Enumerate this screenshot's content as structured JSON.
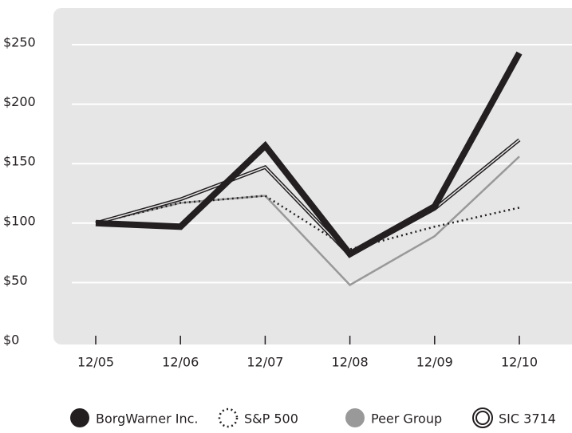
{
  "chart_data": {
    "type": "line",
    "categories": [
      "12/05",
      "12/06",
      "12/07",
      "12/08",
      "12/09",
      "12/10"
    ],
    "series": [
      {
        "name": "BorgWarner Inc.",
        "color": "#231f20",
        "line_style": "thick",
        "values": [
          100,
          97,
          165,
          74,
          114,
          243
        ]
      },
      {
        "name": "S&P 500",
        "color": "#231f20",
        "line_style": "dotted",
        "values": [
          100,
          117,
          123,
          78,
          97,
          113
        ]
      },
      {
        "name": "Peer Group",
        "color": "#999999",
        "line_style": "solid",
        "values": [
          100,
          117,
          123,
          48,
          89,
          156
        ]
      },
      {
        "name": "SIC 3714",
        "color": "#231f20",
        "line_style": "double",
        "values": [
          100,
          120,
          147,
          73,
          112,
          170
        ]
      }
    ],
    "ylim": [
      0,
      250
    ],
    "yticks": [
      {
        "value": 0,
        "label": "$0"
      },
      {
        "value": 50,
        "label": "$50"
      },
      {
        "value": 100,
        "label": "$100"
      },
      {
        "value": 150,
        "label": "$150"
      },
      {
        "value": 200,
        "label": "$200"
      },
      {
        "value": 250,
        "label": "$250"
      }
    ],
    "grid": true,
    "background": "#e6e6e7"
  }
}
